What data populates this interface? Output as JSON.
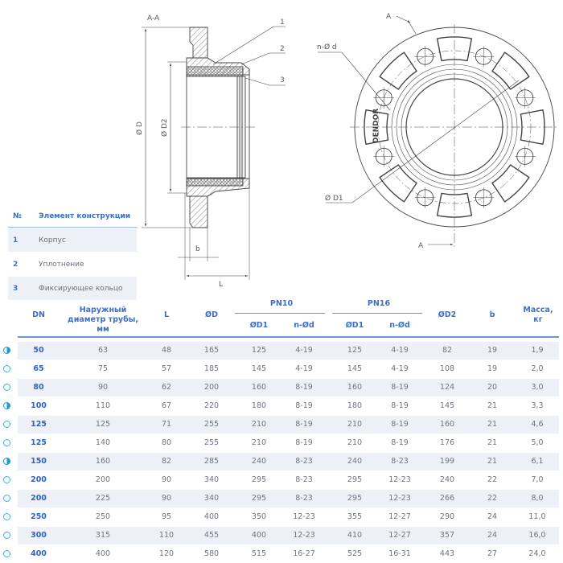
{
  "section_view": {
    "title": "A-A",
    "dim_outer": "Ø D",
    "dim_inner": "Ø D2",
    "dim_b": "b",
    "dim_L": "L",
    "callouts": [
      "1",
      "2",
      "3"
    ]
  },
  "front_view": {
    "section_mark_top": "A",
    "section_mark_bottom": "A",
    "holes_label": "n-Ø d",
    "bolt_circle_label": "Ø D1",
    "logo_text": "DENDOR"
  },
  "components": {
    "headers": {
      "num": "№",
      "name": "Элемент конструкции"
    },
    "rows": [
      {
        "num": "1",
        "name": "Корпус"
      },
      {
        "num": "2",
        "name": "Уплотнение"
      },
      {
        "num": "3",
        "name": "Фиксирующее кольцо"
      }
    ]
  },
  "accent_color": "#3b6fc8",
  "table": {
    "headers": {
      "dn": "DN",
      "pipe_od": "Наружный диаметр трубы, мм",
      "L": "L",
      "D": "ØD",
      "pn10": "PN10",
      "pn16": "PN16",
      "d1_10": "ØD1",
      "nd_10": "n-Ød",
      "d1_16": "ØD1",
      "nd_16": "n-Ød",
      "d2": "ØD2",
      "b": "b",
      "mass": "Масса, кг"
    },
    "rows": [
      {
        "icon": "half-circle",
        "dn": "50",
        "pipe": "63",
        "L": "48",
        "D": "165",
        "d1_10": "125",
        "nd_10": "4-19",
        "d1_16": "125",
        "nd_16": "4-19",
        "d2": "82",
        "b": "19",
        "mass": "1,9"
      },
      {
        "icon": "ring",
        "dn": "65",
        "pipe": "75",
        "L": "57",
        "D": "185",
        "d1_10": "145",
        "nd_10": "4-19",
        "d1_16": "145",
        "nd_16": "4-19",
        "d2": "108",
        "b": "19",
        "mass": "2,0"
      },
      {
        "icon": "ring",
        "dn": "80",
        "pipe": "90",
        "L": "62",
        "D": "200",
        "d1_10": "160",
        "nd_10": "8-19",
        "d1_16": "160",
        "nd_16": "8-19",
        "d2": "124",
        "b": "20",
        "mass": "3,0"
      },
      {
        "icon": "half-circle",
        "dn": "100",
        "pipe": "110",
        "L": "67",
        "D": "220",
        "d1_10": "180",
        "nd_10": "8-19",
        "d1_16": "180",
        "nd_16": "8-19",
        "d2": "145",
        "b": "21",
        "mass": "3,3"
      },
      {
        "icon": "ring",
        "dn": "125",
        "pipe": "125",
        "L": "71",
        "D": "255",
        "d1_10": "210",
        "nd_10": "8-19",
        "d1_16": "210",
        "nd_16": "8-19",
        "d2": "160",
        "b": "21",
        "mass": "4,6"
      },
      {
        "icon": "ring",
        "dn": "125",
        "pipe": "140",
        "L": "80",
        "D": "255",
        "d1_10": "210",
        "nd_10": "8-19",
        "d1_16": "210",
        "nd_16": "8-19",
        "d2": "176",
        "b": "21",
        "mass": "5,0"
      },
      {
        "icon": "half-circle",
        "dn": "150",
        "pipe": "160",
        "L": "82",
        "D": "285",
        "d1_10": "240",
        "nd_10": "8-23",
        "d1_16": "240",
        "nd_16": "8-23",
        "d2": "199",
        "b": "21",
        "mass": "6,1"
      },
      {
        "icon": "ring",
        "dn": "200",
        "pipe": "200",
        "L": "90",
        "D": "340",
        "d1_10": "295",
        "nd_10": "8-23",
        "d1_16": "295",
        "nd_16": "12-23",
        "d2": "240",
        "b": "22",
        "mass": "7,0"
      },
      {
        "icon": "ring",
        "dn": "200",
        "pipe": "225",
        "L": "90",
        "D": "340",
        "d1_10": "295",
        "nd_10": "8-23",
        "d1_16": "295",
        "nd_16": "12-23",
        "d2": "266",
        "b": "22",
        "mass": "8,0"
      },
      {
        "icon": "ring",
        "dn": "250",
        "pipe": "250",
        "L": "95",
        "D": "400",
        "d1_10": "350",
        "nd_10": "12-23",
        "d1_16": "355",
        "nd_16": "12-27",
        "d2": "290",
        "b": "24",
        "mass": "11,0"
      },
      {
        "icon": "ring",
        "dn": "300",
        "pipe": "315",
        "L": "110",
        "D": "455",
        "d1_10": "400",
        "nd_10": "12-23",
        "d1_16": "410",
        "nd_16": "12-27",
        "d2": "357",
        "b": "24",
        "mass": "16,0"
      },
      {
        "icon": "ring",
        "dn": "400",
        "pipe": "400",
        "L": "120",
        "D": "580",
        "d1_10": "515",
        "nd_10": "16-27",
        "d1_16": "525",
        "nd_16": "16-31",
        "d2": "443",
        "b": "27",
        "mass": "24,0"
      }
    ]
  }
}
